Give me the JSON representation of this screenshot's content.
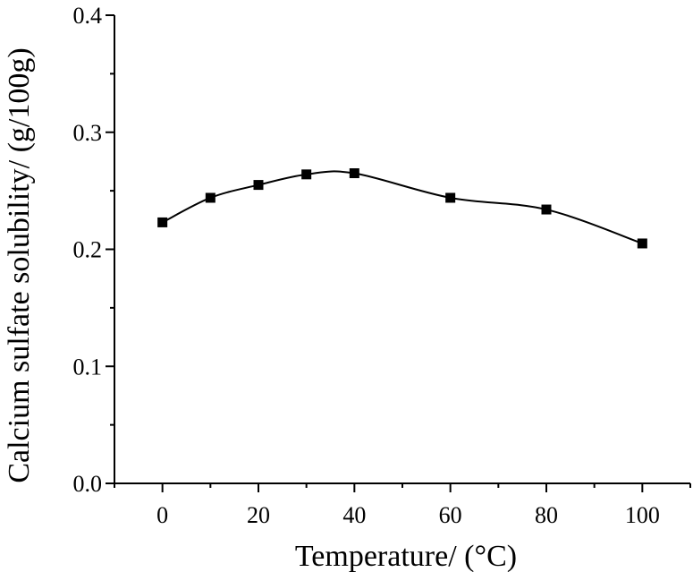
{
  "chart_data": {
    "type": "line",
    "xlabel": "Temperature/ (°C)",
    "ylabel": "Calcium sulfate solubility/ (g/100g)",
    "xlim": [
      -10,
      110
    ],
    "ylim": [
      0.0,
      0.4
    ],
    "x_ticks": [
      0,
      20,
      40,
      60,
      80,
      100
    ],
    "x_tick_labels": [
      "0",
      "20",
      "40",
      "60",
      "80",
      "100"
    ],
    "y_ticks": [
      0.0,
      0.1,
      0.2,
      0.3,
      0.4
    ],
    "y_tick_labels": [
      "0.0",
      "0.1",
      "0.2",
      "0.3",
      "0.4"
    ],
    "grid": false,
    "legend": "none",
    "series": [
      {
        "marker": "square",
        "line": "smooth",
        "color": "#000000",
        "x": [
          0,
          10,
          20,
          30,
          40,
          60,
          80,
          100
        ],
        "y": [
          0.223,
          0.244,
          0.255,
          0.264,
          0.265,
          0.244,
          0.234,
          0.205
        ]
      }
    ]
  }
}
